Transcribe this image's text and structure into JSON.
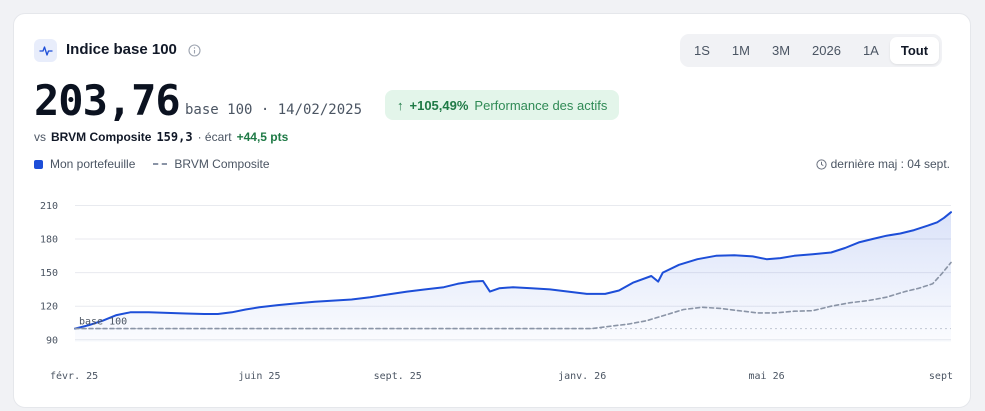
{
  "header": {
    "title": "Indice base 100",
    "icon": "activity-icon",
    "info_icon": "info-icon"
  },
  "periods": [
    {
      "label": "1S",
      "active": false
    },
    {
      "label": "1M",
      "active": false
    },
    {
      "label": "3M",
      "active": false
    },
    {
      "label": "2026",
      "active": false
    },
    {
      "label": "1A",
      "active": false
    },
    {
      "label": "Tout",
      "active": true
    }
  ],
  "summary": {
    "value": "203,76",
    "meta": "base 100 · 14/02/2025",
    "perf_arrow": "↑",
    "perf_value": "+105,49%",
    "perf_label": "Performance des actifs",
    "compare_prefix": "vs",
    "compare_name": "BRVM Composite",
    "compare_value": "159,3",
    "gap_label": "· écart",
    "gap_value": "+44,5 pts"
  },
  "legend": {
    "portfolio": "Mon portefeuille",
    "benchmark": "BRVM Composite",
    "updated": "dernière maj : 04 sept."
  },
  "colors": {
    "portfolio": "#1d4ed8",
    "benchmark": "#8a94a6",
    "area": "#1d4ed8",
    "accent_green": "#1f7a46"
  },
  "chart_data": {
    "type": "line",
    "x_unit": "months since 2025-02",
    "x_ticks": [
      {
        "x": 0,
        "label": "févr. 25"
      },
      {
        "x": 4,
        "label": "juin 25"
      },
      {
        "x": 7,
        "label": "sept. 25"
      },
      {
        "x": 11,
        "label": "janv. 26"
      },
      {
        "x": 15,
        "label": "mai 26"
      },
      {
        "x": 19,
        "label": "sept"
      }
    ],
    "y_ticks": [
      90,
      120,
      150,
      180,
      210
    ],
    "ylim": [
      88,
      214
    ],
    "xlim": [
      0,
      19
    ],
    "grid": true,
    "reference": {
      "y": 100,
      "label": "base 100"
    },
    "series": [
      {
        "name": "Mon portefeuille",
        "style": "solid",
        "area": true,
        "points": [
          [
            0,
            100
          ],
          [
            0.3,
            103
          ],
          [
            0.6,
            107
          ],
          [
            0.9,
            112
          ],
          [
            1.2,
            114.5
          ],
          [
            1.6,
            114.5
          ],
          [
            2.0,
            114
          ],
          [
            2.4,
            113.5
          ],
          [
            2.8,
            113
          ],
          [
            3.1,
            113
          ],
          [
            3.4,
            114.5
          ],
          [
            3.7,
            117
          ],
          [
            4.0,
            119
          ],
          [
            4.4,
            121
          ],
          [
            4.8,
            122.5
          ],
          [
            5.2,
            124
          ],
          [
            5.6,
            125
          ],
          [
            6.0,
            126
          ],
          [
            6.4,
            128
          ],
          [
            6.8,
            130.5
          ],
          [
            7.2,
            133
          ],
          [
            7.6,
            135
          ],
          [
            8.0,
            137
          ],
          [
            8.3,
            140
          ],
          [
            8.6,
            142
          ],
          [
            8.85,
            142.5
          ],
          [
            9.0,
            133
          ],
          [
            9.2,
            136
          ],
          [
            9.5,
            137
          ],
          [
            9.9,
            136
          ],
          [
            10.3,
            135
          ],
          [
            10.7,
            133
          ],
          [
            11.1,
            131
          ],
          [
            11.5,
            131
          ],
          [
            11.8,
            134
          ],
          [
            12.1,
            141
          ],
          [
            12.5,
            147
          ],
          [
            12.65,
            142
          ],
          [
            12.75,
            150
          ],
          [
            13.1,
            157
          ],
          [
            13.5,
            162
          ],
          [
            13.9,
            165
          ],
          [
            14.3,
            165.5
          ],
          [
            14.7,
            164.5
          ],
          [
            15.0,
            162
          ],
          [
            15.3,
            163
          ],
          [
            15.6,
            165
          ],
          [
            16.0,
            166.5
          ],
          [
            16.4,
            168
          ],
          [
            16.7,
            172
          ],
          [
            17.0,
            177
          ],
          [
            17.3,
            180
          ],
          [
            17.6,
            183
          ],
          [
            17.9,
            185
          ],
          [
            18.2,
            188
          ],
          [
            18.5,
            192
          ],
          [
            18.7,
            195
          ],
          [
            18.85,
            199
          ],
          [
            19.0,
            204
          ]
        ]
      },
      {
        "name": "BRVM Composite",
        "style": "dashed",
        "area": false,
        "points": [
          [
            0,
            100
          ],
          [
            2,
            100
          ],
          [
            4,
            100
          ],
          [
            6,
            100
          ],
          [
            8,
            100
          ],
          [
            10,
            100
          ],
          [
            11.2,
            100
          ],
          [
            11.6,
            102
          ],
          [
            12.0,
            104
          ],
          [
            12.4,
            107
          ],
          [
            12.8,
            112
          ],
          [
            13.2,
            117
          ],
          [
            13.6,
            119
          ],
          [
            14.0,
            118
          ],
          [
            14.4,
            116
          ],
          [
            14.8,
            114
          ],
          [
            15.2,
            114
          ],
          [
            15.6,
            115.5
          ],
          [
            16.0,
            116
          ],
          [
            16.4,
            120
          ],
          [
            16.8,
            123
          ],
          [
            17.2,
            125
          ],
          [
            17.6,
            128
          ],
          [
            18.0,
            133
          ],
          [
            18.3,
            136
          ],
          [
            18.6,
            140
          ],
          [
            18.8,
            149
          ],
          [
            19.0,
            159
          ]
        ]
      }
    ]
  }
}
